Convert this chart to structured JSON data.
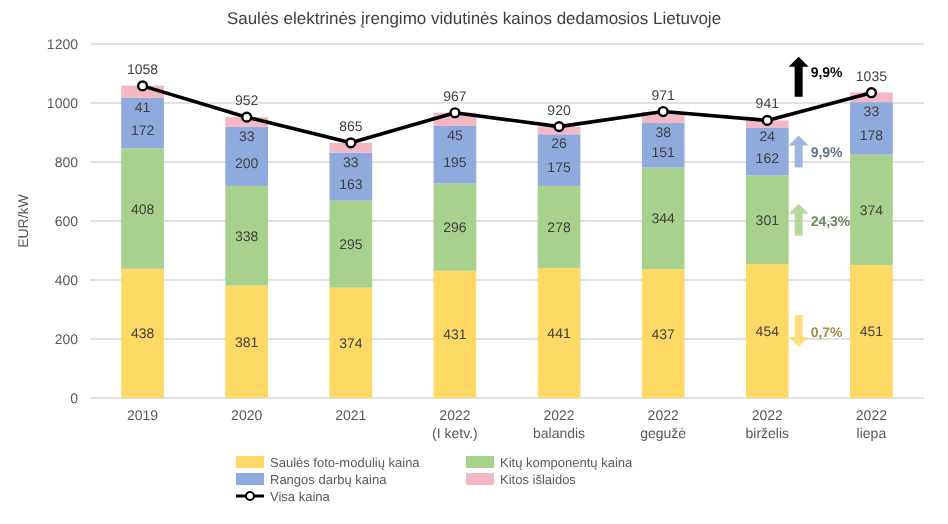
{
  "chart_data": {
    "type": "bar",
    "title": "Saulės elektrinės įrengimo vidutinės kainos dedamosios Lietuvoje",
    "ylabel": "EUR/kW",
    "categories": [
      "2019",
      "2020",
      "2021",
      "2022\n(I ketv.)",
      "2022\nbalandis",
      "2022\ngegužė",
      "2022\nbirželis",
      "2022\nliepa"
    ],
    "stacked": true,
    "series": [
      {
        "name": "Saulės foto-modulių kaina",
        "color": "#ffd966",
        "values": [
          438,
          381,
          374,
          431,
          441,
          437,
          454,
          451
        ]
      },
      {
        "name": "Kitų komponentų kaina",
        "color": "#a9d18e",
        "values": [
          408,
          338,
          295,
          296,
          278,
          344,
          301,
          374
        ]
      },
      {
        "name": "Rangos darbų kaina",
        "color": "#8faadc",
        "values": [
          172,
          200,
          163,
          195,
          175,
          151,
          162,
          178
        ]
      },
      {
        "name": "Kitos išlaidos",
        "color": "#f4b8c4",
        "values": [
          41,
          33,
          33,
          45,
          26,
          38,
          24,
          33
        ]
      },
      {
        "name": "Visa kaina",
        "type": "line",
        "color": "#000000",
        "marker": "circle",
        "values": [
          1058,
          952,
          865,
          967,
          920,
          971,
          941,
          1035
        ]
      }
    ],
    "annotations": [
      "9,9%",
      "9,9%",
      "24,3%",
      "0,7%"
    ],
    "ylim": [
      0,
      1200
    ],
    "yticks": [
      0,
      200,
      400,
      600,
      800,
      1000,
      1200
    ],
    "grid": "y",
    "legend": "bottom",
    "data_labels": true
  }
}
